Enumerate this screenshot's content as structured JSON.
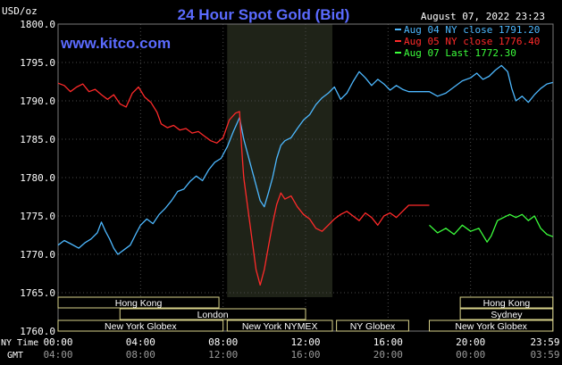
{
  "chart_data": {
    "type": "line",
    "title": "24 Hour Spot Gold (Bid)",
    "units": "USD/oz",
    "timestamp": "August 07, 2022 23:23",
    "brand": "www.kitco.com",
    "yticks": [
      "1800.0",
      "1795.0",
      "1790.0",
      "1785.0",
      "1780.0",
      "1775.0",
      "1770.0",
      "1765.0",
      "1760.0"
    ],
    "ylim": [
      1760,
      1800
    ],
    "x_row_label_1": "NY Time",
    "x_row_label_2": "GMT",
    "xticks_ny": [
      "00:00",
      "04:00",
      "08:00",
      "12:00",
      "16:00",
      "20:00",
      "23:59"
    ],
    "xticks_gmt": [
      "04:00",
      "08:00",
      "12:00",
      "16:00",
      "20:00",
      "00:00",
      "03:59"
    ],
    "colors": {
      "background": "#000000",
      "grid": "#4a4a4a",
      "title": "#5b6bff",
      "axis_text": "#ffffff",
      "nymex_band": "#1f2318",
      "aug04": "#4db8ff",
      "aug05": "#ff2a2a",
      "aug07": "#3cff3c"
    },
    "legend": {
      "placement": "top-right",
      "items": [
        {
          "label": "Aug 04 NY close 1791.20",
          "color": "#4db8ff"
        },
        {
          "label": "Aug 05 NY close 1776.40",
          "color": "#ff2a2a"
        },
        {
          "label": "Aug 07 Last 1772.30",
          "color": "#3cff3c"
        }
      ]
    },
    "sessions": [
      {
        "label": "Hong Kong",
        "row": 0,
        "start": 0.0,
        "end": 7.8
      },
      {
        "label": "London",
        "row": 1,
        "start": 3.0,
        "end": 12.0
      },
      {
        "label": "New York Globex",
        "row": 2,
        "start": 0.0,
        "end": 8.0
      },
      {
        "label": "New York NYMEX",
        "row": 2,
        "start": 8.2,
        "end": 13.3
      },
      {
        "label": "NY Globex",
        "row": 2,
        "start": 13.5,
        "end": 17.0
      },
      {
        "label": "Hong Kong",
        "row": 0,
        "start": 19.5,
        "end": 23.99
      },
      {
        "label": "Sydney",
        "row": 1,
        "start": 19.5,
        "end": 23.99
      },
      {
        "label": "New York Globex",
        "row": 2,
        "start": 18.0,
        "end": 23.99
      }
    ],
    "series": [
      {
        "name": "Aug 04 NY close 1791.20",
        "color": "#4db8ff",
        "points": [
          [
            0,
            1771.2
          ],
          [
            0.3,
            1771.8
          ],
          [
            0.6,
            1771.4
          ],
          [
            1,
            1770.8
          ],
          [
            1.3,
            1771.5
          ],
          [
            1.6,
            1772.0
          ],
          [
            1.9,
            1772.8
          ],
          [
            2.1,
            1774.2
          ],
          [
            2.3,
            1773.0
          ],
          [
            2.5,
            1772.0
          ],
          [
            2.7,
            1770.8
          ],
          [
            2.9,
            1770.0
          ],
          [
            3.2,
            1770.6
          ],
          [
            3.5,
            1771.2
          ],
          [
            3.8,
            1772.8
          ],
          [
            4.0,
            1773.8
          ],
          [
            4.3,
            1774.6
          ],
          [
            4.6,
            1774.0
          ],
          [
            4.9,
            1775.2
          ],
          [
            5.2,
            1776.0
          ],
          [
            5.5,
            1777.0
          ],
          [
            5.8,
            1778.2
          ],
          [
            6.1,
            1778.5
          ],
          [
            6.4,
            1779.5
          ],
          [
            6.7,
            1780.2
          ],
          [
            7.0,
            1779.6
          ],
          [
            7.3,
            1781.0
          ],
          [
            7.6,
            1782.0
          ],
          [
            7.9,
            1782.5
          ],
          [
            8.2,
            1784.0
          ],
          [
            8.5,
            1786.0
          ],
          [
            8.8,
            1787.8
          ],
          [
            9.0,
            1785.0
          ],
          [
            9.2,
            1783.0
          ],
          [
            9.4,
            1781.0
          ],
          [
            9.6,
            1779.0
          ],
          [
            9.8,
            1777.0
          ],
          [
            10.0,
            1776.2
          ],
          [
            10.2,
            1778.0
          ],
          [
            10.4,
            1780.0
          ],
          [
            10.6,
            1782.5
          ],
          [
            10.8,
            1784.2
          ],
          [
            11.0,
            1784.8
          ],
          [
            11.3,
            1785.2
          ],
          [
            11.6,
            1786.4
          ],
          [
            11.9,
            1787.5
          ],
          [
            12.2,
            1788.2
          ],
          [
            12.5,
            1789.5
          ],
          [
            12.8,
            1790.4
          ],
          [
            13.1,
            1791.0
          ],
          [
            13.4,
            1791.8
          ],
          [
            13.7,
            1790.2
          ],
          [
            14.0,
            1791.0
          ],
          [
            14.3,
            1792.5
          ],
          [
            14.6,
            1793.8
          ],
          [
            14.9,
            1793.0
          ],
          [
            15.2,
            1792.0
          ],
          [
            15.5,
            1792.8
          ],
          [
            15.8,
            1792.2
          ],
          [
            16.1,
            1791.4
          ],
          [
            16.4,
            1792.0
          ],
          [
            16.7,
            1791.5
          ],
          [
            17.0,
            1791.2
          ],
          [
            17.5,
            1791.2
          ],
          [
            18.0,
            1791.2
          ],
          [
            18.4,
            1790.6
          ],
          [
            18.8,
            1791.0
          ],
          [
            19.2,
            1791.8
          ],
          [
            19.6,
            1792.6
          ],
          [
            20.0,
            1793.0
          ],
          [
            20.3,
            1793.6
          ],
          [
            20.6,
            1792.8
          ],
          [
            20.9,
            1793.2
          ],
          [
            21.2,
            1794.0
          ],
          [
            21.5,
            1794.6
          ],
          [
            21.8,
            1793.8
          ],
          [
            22.0,
            1791.6
          ],
          [
            22.2,
            1790.0
          ],
          [
            22.5,
            1790.6
          ],
          [
            22.8,
            1789.8
          ],
          [
            23.1,
            1790.8
          ],
          [
            23.4,
            1791.6
          ],
          [
            23.7,
            1792.2
          ],
          [
            23.99,
            1792.4
          ]
        ]
      },
      {
        "name": "Aug 05 NY close 1776.40",
        "color": "#ff2a2a",
        "points": [
          [
            0,
            1792.3
          ],
          [
            0.3,
            1792.0
          ],
          [
            0.6,
            1791.2
          ],
          [
            0.9,
            1791.8
          ],
          [
            1.2,
            1792.2
          ],
          [
            1.5,
            1791.2
          ],
          [
            1.8,
            1791.5
          ],
          [
            2.1,
            1790.8
          ],
          [
            2.4,
            1790.2
          ],
          [
            2.7,
            1790.8
          ],
          [
            3.0,
            1789.6
          ],
          [
            3.3,
            1789.2
          ],
          [
            3.6,
            1791.0
          ],
          [
            3.9,
            1791.8
          ],
          [
            4.2,
            1790.5
          ],
          [
            4.5,
            1789.8
          ],
          [
            4.8,
            1788.5
          ],
          [
            5.0,
            1787.0
          ],
          [
            5.3,
            1786.5
          ],
          [
            5.6,
            1786.8
          ],
          [
            5.9,
            1786.2
          ],
          [
            6.2,
            1786.4
          ],
          [
            6.5,
            1785.8
          ],
          [
            6.8,
            1786.0
          ],
          [
            7.1,
            1785.4
          ],
          [
            7.4,
            1784.8
          ],
          [
            7.7,
            1784.5
          ],
          [
            8.0,
            1785.2
          ],
          [
            8.3,
            1787.5
          ],
          [
            8.6,
            1788.4
          ],
          [
            8.8,
            1788.6
          ],
          [
            8.9,
            1784.0
          ],
          [
            9.0,
            1780.0
          ],
          [
            9.2,
            1776.0
          ],
          [
            9.4,
            1772.0
          ],
          [
            9.6,
            1768.0
          ],
          [
            9.8,
            1766.0
          ],
          [
            10.0,
            1768.0
          ],
          [
            10.2,
            1771.0
          ],
          [
            10.4,
            1774.0
          ],
          [
            10.6,
            1776.5
          ],
          [
            10.8,
            1778.0
          ],
          [
            11.0,
            1777.2
          ],
          [
            11.3,
            1777.6
          ],
          [
            11.6,
            1776.2
          ],
          [
            11.9,
            1775.2
          ],
          [
            12.2,
            1774.6
          ],
          [
            12.5,
            1773.4
          ],
          [
            12.8,
            1773.0
          ],
          [
            13.1,
            1773.8
          ],
          [
            13.4,
            1774.6
          ],
          [
            13.7,
            1775.2
          ],
          [
            14.0,
            1775.6
          ],
          [
            14.3,
            1775.0
          ],
          [
            14.6,
            1774.4
          ],
          [
            14.9,
            1775.4
          ],
          [
            15.2,
            1774.8
          ],
          [
            15.5,
            1773.8
          ],
          [
            15.8,
            1775.0
          ],
          [
            16.1,
            1775.4
          ],
          [
            16.4,
            1774.8
          ],
          [
            16.7,
            1775.6
          ],
          [
            17.0,
            1776.4
          ],
          [
            17.5,
            1776.4
          ],
          [
            18.0,
            1776.4
          ]
        ]
      },
      {
        "name": "Aug 07 Last 1772.30",
        "color": "#3cff3c",
        "points": [
          [
            18.0,
            1773.8
          ],
          [
            18.4,
            1772.8
          ],
          [
            18.8,
            1773.4
          ],
          [
            19.2,
            1772.6
          ],
          [
            19.6,
            1773.8
          ],
          [
            20.0,
            1773.0
          ],
          [
            20.4,
            1773.4
          ],
          [
            20.8,
            1771.6
          ],
          [
            21.0,
            1772.4
          ],
          [
            21.3,
            1774.4
          ],
          [
            21.6,
            1774.8
          ],
          [
            21.9,
            1775.2
          ],
          [
            22.2,
            1774.8
          ],
          [
            22.5,
            1775.2
          ],
          [
            22.8,
            1774.4
          ],
          [
            23.1,
            1775.0
          ],
          [
            23.4,
            1773.4
          ],
          [
            23.7,
            1772.6
          ],
          [
            23.99,
            1772.3
          ]
        ]
      }
    ]
  }
}
